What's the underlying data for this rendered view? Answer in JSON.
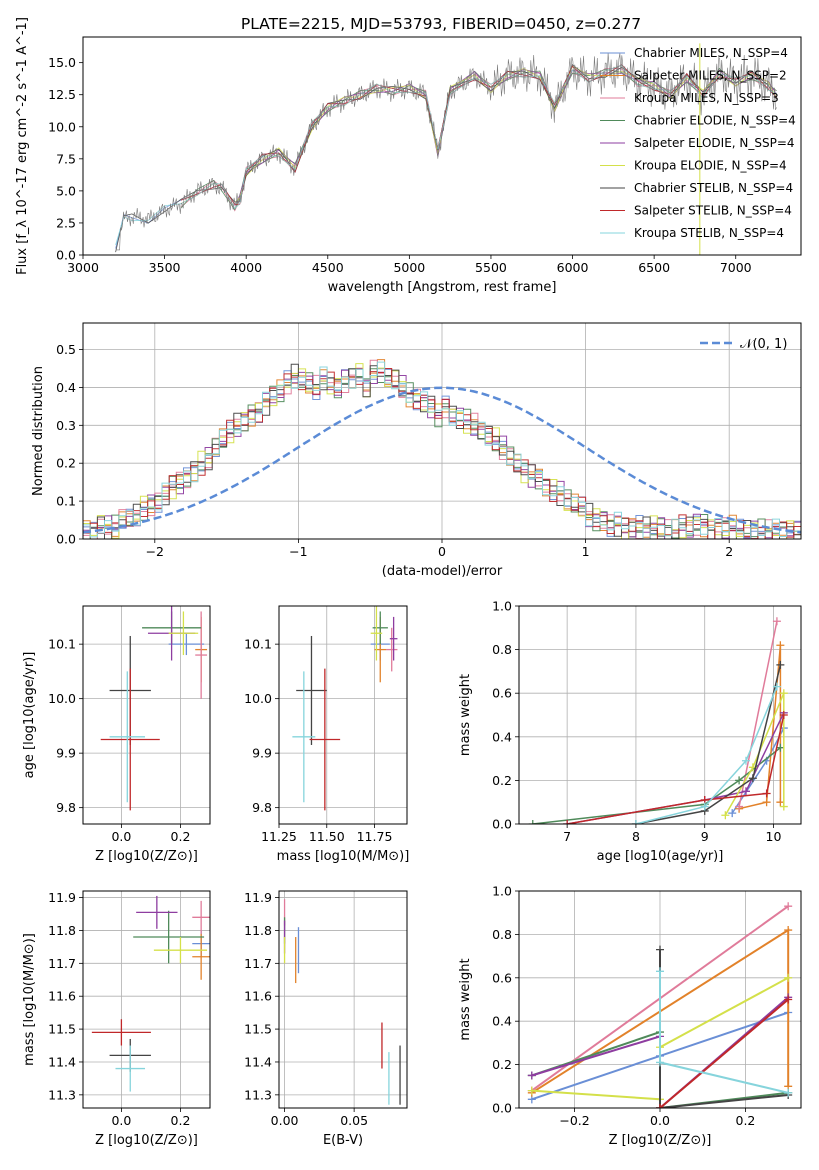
{
  "figure": {
    "title": "PLATE=2215, MJD=53793, FIBERID=0450, z=0.277"
  },
  "colors": {
    "models": [
      "#6a8fd6",
      "#e2822a",
      "#e07b9a",
      "#4f8a5a",
      "#8e3da0",
      "#d4e04a",
      "#444444",
      "#c0282a",
      "#86d4dc"
    ],
    "normal_curve": "#5b8bd6"
  },
  "chart_data": [
    {
      "id": "spectrum",
      "type": "line",
      "xlabel": "wavelength [Angstrom, rest frame]",
      "ylabel": "Flux [f_λ 10^-17 erg cm^-2 s^-1 A^-1]",
      "xlim": [
        3000,
        7400
      ],
      "ylim": [
        0,
        17
      ],
      "xticks": [
        3000,
        3500,
        4000,
        4500,
        5000,
        5500,
        6000,
        6500,
        7000
      ],
      "yticks": [
        0.0,
        2.5,
        5.0,
        7.5,
        10.0,
        12.5,
        15.0
      ],
      "grid": false,
      "legend_position": "top-right",
      "legend": [
        "Chabrier MILES, N_SSP=4",
        "Salpeter MILES, N_SSP=2",
        "Kroupa MILES, N_SSP=3",
        "Chabrier ELODIE, N_SSP=4",
        "Salpeter ELODIE, N_SSP=4",
        "Kroupa ELODIE, N_SSP=4",
        "Chabrier STELIB, N_SSP=4",
        "Salpeter STELIB, N_SSP=4",
        "Kroupa STELIB, N_SSP=4"
      ],
      "data_wavelength": [
        3200,
        3250,
        3300,
        3400,
        3500,
        3600,
        3700,
        3800,
        3850,
        3930,
        3960,
        4000,
        4100,
        4200,
        4300,
        4400,
        4500,
        4600,
        4700,
        4800,
        4900,
        5000,
        5100,
        5175,
        5250,
        5400,
        5500,
        5600,
        5700,
        5800,
        5890,
        6000,
        6100,
        6200,
        6300,
        6400,
        6500,
        6600,
        6700,
        6800,
        6900,
        7000,
        7100,
        7200,
        7250
      ],
      "data_flux": [
        0.5,
        2.8,
        3.0,
        2.8,
        3.5,
        4.0,
        5.0,
        5.5,
        5.2,
        3.8,
        4.3,
        6.5,
        7.5,
        8.0,
        6.8,
        10.0,
        11.5,
        12.0,
        12.5,
        13.0,
        12.8,
        13.0,
        12.5,
        8.0,
        12.8,
        14.0,
        13.0,
        14.0,
        14.2,
        14.0,
        11.5,
        14.5,
        13.8,
        14.2,
        14.5,
        13.5,
        13.2,
        12.5,
        13.8,
        12.5,
        14.2,
        13.5,
        14.0,
        13.2,
        12.5
      ]
    },
    {
      "id": "residuals",
      "type": "area",
      "xlabel": "(data-model)/error",
      "ylabel": "Normed distribution",
      "xlim": [
        -2.5,
        2.5
      ],
      "ylim": [
        0,
        0.57
      ],
      "xticks": [
        -2,
        -1,
        0,
        1,
        2
      ],
      "yticks": [
        0.0,
        0.1,
        0.2,
        0.3,
        0.4,
        0.5
      ],
      "grid": true,
      "legend_position": "top-right",
      "legend": [
        "𝒩(0, 1)"
      ],
      "bin_width": 0.1,
      "bin_start": -2.5,
      "histogram_density": [
        0.02,
        0.02,
        0.04,
        0.03,
        0.03,
        0.05,
        0.05,
        0.06,
        0.08,
        0.09,
        0.1,
        0.12,
        0.14,
        0.15,
        0.16,
        0.18,
        0.2,
        0.21,
        0.24,
        0.26,
        0.28,
        0.3,
        0.31,
        0.33,
        0.34,
        0.36,
        0.38,
        0.39,
        0.41,
        0.43,
        0.42,
        0.41,
        0.4,
        0.42,
        0.41,
        0.4,
        0.42,
        0.43,
        0.44,
        0.4,
        0.44,
        0.44,
        0.42,
        0.42,
        0.4,
        0.38,
        0.37,
        0.36,
        0.35,
        0.33,
        0.35,
        0.33,
        0.32,
        0.31,
        0.3,
        0.28,
        0.27,
        0.26,
        0.24,
        0.22,
        0.2,
        0.18,
        0.17,
        0.16,
        0.14,
        0.13,
        0.12,
        0.1,
        0.09,
        0.08,
        0.06,
        0.05,
        0.05,
        0.04,
        0.04,
        0.03,
        0.03,
        0.03,
        0.03,
        0.03,
        0.03,
        0.02,
        0.02,
        0.03,
        0.03,
        0.04,
        0.04,
        0.03,
        0.03,
        0.03,
        0.03,
        0.02,
        0.02,
        0.02,
        0.02,
        0.02,
        0.02,
        0.02,
        0.02,
        0.02
      ]
    },
    {
      "id": "age-vs-Z",
      "type": "scatter",
      "xlabel": "Z [log10(Z/Z⊙)]",
      "ylabel": "age [log10(age/yr)]",
      "xlim": [
        -0.13,
        0.3
      ],
      "ylim": [
        9.77,
        10.17
      ],
      "xticks": [
        0.0,
        0.2
      ],
      "yticks": [
        9.8,
        9.9,
        10.0,
        10.1
      ],
      "grid": true,
      "points": [
        {
          "x": 0.22,
          "y": 10.1,
          "xerr": 0.06,
          "yerr": 0.02
        },
        {
          "x": 0.27,
          "y": 10.09,
          "xerr": 0.02,
          "yerr": 0.06
        },
        {
          "x": 0.27,
          "y": 10.08,
          "xerr": 0.02,
          "yerr": 0.08
        },
        {
          "x": 0.17,
          "y": 10.13,
          "xerr": 0.1,
          "yerr": 0.03
        },
        {
          "x": 0.17,
          "y": 10.12,
          "xerr": 0.08,
          "yerr": 0.05
        },
        {
          "x": 0.21,
          "y": 10.12,
          "xerr": 0.05,
          "yerr": 0.04
        },
        {
          "x": 0.03,
          "y": 10.015,
          "xerr": 0.07,
          "yerr": 0.1
        },
        {
          "x": 0.03,
          "y": 9.925,
          "xerr": 0.1,
          "yerr": 0.13
        },
        {
          "x": 0.02,
          "y": 9.93,
          "xerr": 0.06,
          "yerr": 0.12
        }
      ]
    },
    {
      "id": "age-vs-mass",
      "type": "scatter",
      "xlabel": "mass [log10(M/M⊙)]",
      "ylabel": "",
      "xlim": [
        11.25,
        11.92
      ],
      "ylim": [
        9.77,
        10.17
      ],
      "xticks": [
        11.25,
        11.5,
        11.75
      ],
      "yticks": [
        9.8,
        9.9,
        10.0,
        10.1
      ],
      "grid": true,
      "points": [
        {
          "x": 11.78,
          "y": 10.1,
          "xerr": 0.05,
          "yerr": 0.03
        },
        {
          "x": 11.78,
          "y": 10.09,
          "xerr": 0.03,
          "yerr": 0.06
        },
        {
          "x": 11.84,
          "y": 10.09,
          "xerr": 0.03,
          "yerr": 0.04
        },
        {
          "x": 11.78,
          "y": 10.13,
          "xerr": 0.04,
          "yerr": 0.03
        },
        {
          "x": 11.85,
          "y": 10.11,
          "xerr": 0.02,
          "yerr": 0.04
        },
        {
          "x": 11.76,
          "y": 10.12,
          "xerr": 0.03,
          "yerr": 0.05
        },
        {
          "x": 11.42,
          "y": 10.015,
          "xerr": 0.08,
          "yerr": 0.1
        },
        {
          "x": 11.49,
          "y": 9.925,
          "xerr": 0.08,
          "yerr": 0.13
        },
        {
          "x": 11.38,
          "y": 9.93,
          "xerr": 0.06,
          "yerr": 0.12
        }
      ]
    },
    {
      "id": "massweight-vs-age",
      "type": "line",
      "xlabel": "age [log10(age/yr)]",
      "ylabel": "mass weight",
      "xlim": [
        6.3,
        10.4
      ],
      "ylim": [
        0,
        1
      ],
      "xticks": [
        7,
        8,
        9,
        10
      ],
      "yticks": [
        0.0,
        0.2,
        0.4,
        0.6,
        0.8,
        1.0
      ],
      "grid": true,
      "series": [
        {
          "x": [
            9.4,
            9.9,
            10.15
          ],
          "y": [
            0.05,
            0.29,
            0.44
          ]
        },
        {
          "x": [
            9.5,
            9.9,
            10.1,
            10.1
          ],
          "y": [
            0.07,
            0.1,
            0.82,
            0.1
          ]
        },
        {
          "x": [
            9.5,
            10.05
          ],
          "y": [
            0.08,
            0.93
          ]
        },
        {
          "x": [
            6.5,
            9.0,
            9.5,
            10.1
          ],
          "y": [
            0.0,
            0.09,
            0.2,
            0.35
          ]
        },
        {
          "x": [
            7.0,
            9.0,
            9.6,
            10.15
          ],
          "y": [
            0.0,
            0.11,
            0.15,
            0.51
          ]
        },
        {
          "x": [
            9.3,
            9.7,
            10.15,
            10.15
          ],
          "y": [
            0.04,
            0.26,
            0.6,
            0.08
          ]
        },
        {
          "x": [
            8.0,
            9.0,
            9.7,
            10.1
          ],
          "y": [
            0.0,
            0.06,
            0.21,
            0.73
          ]
        },
        {
          "x": [
            7.0,
            9.0,
            9.9,
            10.15
          ],
          "y": [
            0.0,
            0.11,
            0.14,
            0.5
          ]
        },
        {
          "x": [
            8.0,
            9.0,
            9.6,
            10.05
          ],
          "y": [
            0.0,
            0.08,
            0.29,
            0.63
          ]
        }
      ]
    },
    {
      "id": "mass-vs-Z",
      "type": "scatter",
      "xlabel": "Z [log10(Z/Z⊙)]",
      "ylabel": "mass [log10(M/M⊙)]",
      "xlim": [
        -0.13,
        0.3
      ],
      "ylim": [
        11.26,
        11.92
      ],
      "xticks": [
        0.0,
        0.2
      ],
      "yticks": [
        11.3,
        11.4,
        11.5,
        11.6,
        11.7,
        11.8,
        11.9
      ],
      "grid": true,
      "points": [
        {
          "x": 0.27,
          "y": 11.76,
          "xerr": 0.03,
          "yerr": 0.04
        },
        {
          "x": 0.27,
          "y": 11.72,
          "xerr": 0.03,
          "yerr": 0.07
        },
        {
          "x": 0.27,
          "y": 11.84,
          "xerr": 0.03,
          "yerr": 0.05
        },
        {
          "x": 0.16,
          "y": 11.78,
          "xerr": 0.12,
          "yerr": 0.08
        },
        {
          "x": 0.12,
          "y": 11.855,
          "xerr": 0.07,
          "yerr": 0.05
        },
        {
          "x": 0.2,
          "y": 11.74,
          "xerr": 0.09,
          "yerr": 0.04
        },
        {
          "x": 0.03,
          "y": 11.42,
          "xerr": 0.07,
          "yerr": 0.05
        },
        {
          "x": 0.0,
          "y": 11.49,
          "xerr": 0.1,
          "yerr": 0.04
        },
        {
          "x": 0.03,
          "y": 11.38,
          "xerr": 0.05,
          "yerr": 0.07
        }
      ]
    },
    {
      "id": "mass-vs-EBV",
      "type": "scatter",
      "xlabel": "E(B-V)",
      "ylabel": "",
      "xlim": [
        -0.004,
        0.088
      ],
      "ylim": [
        11.26,
        11.92
      ],
      "xticks": [
        0.0,
        0.05
      ],
      "yticks": [
        11.3,
        11.4,
        11.5,
        11.6,
        11.7,
        11.8,
        11.9
      ],
      "grid": true,
      "points": [
        {
          "x": 0.01,
          "y": 11.74,
          "xerr": 0.0,
          "yerr": 0.07
        },
        {
          "x": 0.008,
          "y": 11.71,
          "xerr": 0.0,
          "yerr": 0.07
        },
        {
          "x": 0.0,
          "y": 11.855,
          "xerr": 0.0,
          "yerr": 0.04
        },
        {
          "x": 0.0,
          "y": 11.8,
          "xerr": 0.0,
          "yerr": 0.04
        },
        {
          "x": 0.0,
          "y": 11.78,
          "xerr": 0.0,
          "yerr": 0.05
        },
        {
          "x": 0.0,
          "y": 11.74,
          "xerr": 0.0,
          "yerr": 0.04
        },
        {
          "x": 0.083,
          "y": 11.36,
          "xerr": 0.0,
          "yerr": 0.09
        },
        {
          "x": 0.07,
          "y": 11.45,
          "xerr": 0.0,
          "yerr": 0.07
        },
        {
          "x": 0.075,
          "y": 11.35,
          "xerr": 0.0,
          "yerr": 0.08
        }
      ]
    },
    {
      "id": "massweight-vs-Z",
      "type": "line",
      "xlabel": "Z [log10(Z/Z⊙)]",
      "ylabel": "mass weight",
      "xlim": [
        -0.33,
        0.33
      ],
      "ylim": [
        0,
        1
      ],
      "xticks": [
        -0.2,
        0.0,
        0.2
      ],
      "yticks": [
        0.0,
        0.2,
        0.4,
        0.6,
        0.8,
        1.0
      ],
      "grid": true,
      "series": [
        {
          "x": [
            -0.3,
            0.0,
            0.3
          ],
          "y": [
            0.04,
            0.24,
            0.44
          ]
        },
        {
          "x": [
            -0.3,
            0.3,
            0.3
          ],
          "y": [
            0.07,
            0.82,
            0.1
          ]
        },
        {
          "x": [
            -0.3,
            0.3
          ],
          "y": [
            0.08,
            0.93
          ]
        },
        {
          "x": [
            -0.3,
            0.0,
            0.0,
            0.3
          ],
          "y": [
            0.15,
            0.35,
            0.0,
            0.07
          ]
        },
        {
          "x": [
            -0.3,
            0.0,
            0.0,
            0.3
          ],
          "y": [
            0.15,
            0.33,
            0.0,
            0.51
          ]
        },
        {
          "x": [
            -0.3,
            0.0,
            0.0,
            0.3
          ],
          "y": [
            0.08,
            0.04,
            0.28,
            0.6
          ]
        },
        {
          "x": [
            0.0,
            0.0,
            0.3
          ],
          "y": [
            0.73,
            0.0,
            0.06
          ]
        },
        {
          "x": [
            0.0,
            0.0,
            0.3
          ],
          "y": [
            0.0,
            0.0,
            0.5
          ]
        },
        {
          "x": [
            0.0,
            0.0,
            0.3
          ],
          "y": [
            0.63,
            0.21,
            0.07
          ]
        }
      ]
    }
  ]
}
